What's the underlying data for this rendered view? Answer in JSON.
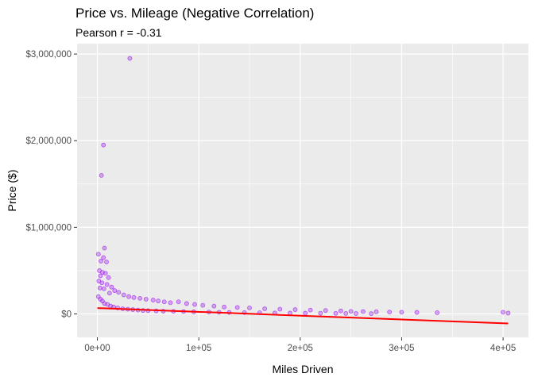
{
  "chart_data": {
    "type": "scatter",
    "title": "Price vs. Mileage (Negative Correlation)",
    "subtitle": "Pearson r = -0.31",
    "xlabel": "Miles Driven",
    "ylabel": "Price ($)",
    "xlim": [
      -20000,
      425000
    ],
    "ylim": [
      -270000,
      3120000
    ],
    "x_ticks": [
      0,
      100000,
      200000,
      300000,
      400000
    ],
    "x_tick_labels": [
      "0e+00",
      "1e+05",
      "2e+05",
      "3e+05",
      "4e+05"
    ],
    "y_ticks": [
      0,
      1000000,
      2000000,
      3000000
    ],
    "y_tick_labels": [
      "$0",
      "$1,000,000",
      "$2,000,000",
      "$3,000,000"
    ],
    "grid": true,
    "colors": {
      "points": "#a020f0",
      "trend_line": "#ff0000",
      "panel_background": "#ebebeb",
      "grid": "#ffffff"
    },
    "series": [
      {
        "type": "scatter",
        "points": [
          [
            32000,
            2950000
          ],
          [
            6000,
            1950000
          ],
          [
            4000,
            1600000
          ],
          [
            7000,
            760000
          ],
          [
            1000,
            690000
          ],
          [
            6000,
            650000
          ],
          [
            3500,
            610000
          ],
          [
            9000,
            600000
          ],
          [
            2000,
            500000
          ],
          [
            5000,
            480000
          ],
          [
            8000,
            470000
          ],
          [
            3000,
            440000
          ],
          [
            11000,
            420000
          ],
          [
            1500,
            380000
          ],
          [
            4500,
            360000
          ],
          [
            9500,
            340000
          ],
          [
            14000,
            310000
          ],
          [
            2500,
            300000
          ],
          [
            6500,
            290000
          ],
          [
            17000,
            270000
          ],
          [
            21000,
            250000
          ],
          [
            12000,
            240000
          ],
          [
            26000,
            220000
          ],
          [
            31000,
            200000
          ],
          [
            36000,
            190000
          ],
          [
            42000,
            180000
          ],
          [
            48000,
            170000
          ],
          [
            55000,
            160000
          ],
          [
            60000,
            150000
          ],
          [
            66000,
            140000
          ],
          [
            72000,
            130000
          ],
          [
            80000,
            140000
          ],
          [
            88000,
            120000
          ],
          [
            96000,
            110000
          ],
          [
            104000,
            100000
          ],
          [
            115000,
            90000
          ],
          [
            125000,
            80000
          ],
          [
            138000,
            75000
          ],
          [
            150000,
            70000
          ],
          [
            165000,
            60000
          ],
          [
            180000,
            55000
          ],
          [
            195000,
            50000
          ],
          [
            210000,
            45000
          ],
          [
            225000,
            40000
          ],
          [
            240000,
            35000
          ],
          [
            250000,
            30000
          ],
          [
            262000,
            28000
          ],
          [
            275000,
            25000
          ],
          [
            288000,
            22000
          ],
          [
            300000,
            20000
          ],
          [
            315000,
            18000
          ],
          [
            335000,
            15000
          ],
          [
            400000,
            20000
          ],
          [
            405000,
            10000
          ],
          [
            1000,
            200000
          ],
          [
            3000,
            170000
          ],
          [
            5000,
            150000
          ],
          [
            7000,
            120000
          ],
          [
            10000,
            110000
          ],
          [
            13000,
            90000
          ],
          [
            16000,
            80000
          ],
          [
            20000,
            70000
          ],
          [
            25000,
            60000
          ],
          [
            30000,
            55000
          ],
          [
            35000,
            50000
          ],
          [
            40000,
            45000
          ],
          [
            45000,
            40000
          ],
          [
            50000,
            38000
          ],
          [
            58000,
            35000
          ],
          [
            65000,
            32000
          ],
          [
            75000,
            30000
          ],
          [
            85000,
            28000
          ],
          [
            95000,
            25000
          ],
          [
            110000,
            22000
          ],
          [
            120000,
            20000
          ],
          [
            130000,
            18000
          ],
          [
            145000,
            16000
          ],
          [
            160000,
            14000
          ],
          [
            175000,
            12000
          ],
          [
            190000,
            10000
          ],
          [
            205000,
            9000
          ],
          [
            220000,
            8000
          ],
          [
            235000,
            7000
          ],
          [
            245000,
            6000
          ],
          [
            255000,
            5000
          ],
          [
            270000,
            4000
          ]
        ]
      },
      {
        "type": "line",
        "name": "",
        "x": [
          0,
          405000
        ],
        "y": [
          68000,
          -110000
        ]
      }
    ]
  }
}
